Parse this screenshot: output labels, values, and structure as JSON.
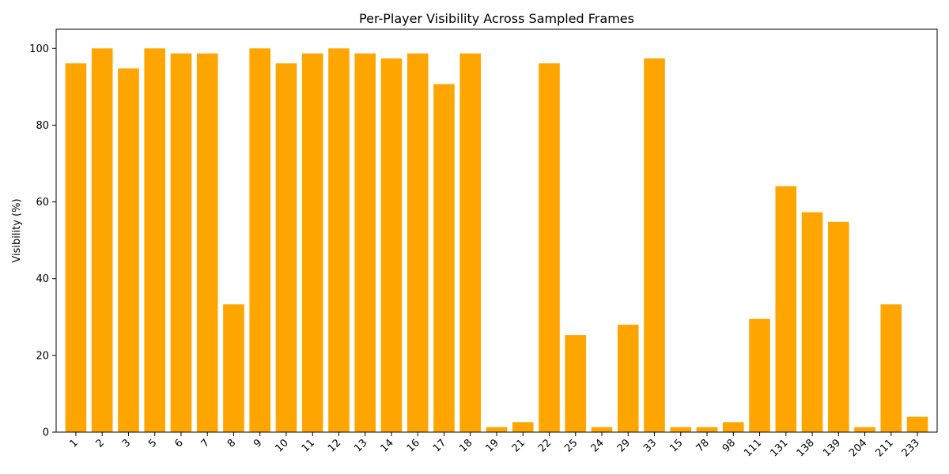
{
  "chart_data": {
    "type": "bar",
    "title": "Per-Player Visibility Across Sampled Frames",
    "xlabel": "",
    "ylabel": "Visibility (%)",
    "ylim": [
      0,
      105
    ],
    "yticks": [
      0,
      20,
      40,
      60,
      80,
      100
    ],
    "grid": false,
    "bar_color": "#FFA500",
    "categories": [
      "1",
      "2",
      "3",
      "5",
      "6",
      "7",
      "8",
      "9",
      "10",
      "11",
      "12",
      "13",
      "14",
      "16",
      "17",
      "18",
      "19",
      "21",
      "22",
      "25",
      "24",
      "29",
      "33",
      "15",
      "78",
      "98",
      "111",
      "131",
      "138",
      "139",
      "204",
      "211",
      "233"
    ],
    "values": [
      96.1,
      100,
      94.8,
      100,
      98.7,
      98.7,
      33.3,
      100,
      96.1,
      98.7,
      100,
      98.7,
      97.4,
      98.7,
      90.7,
      98.7,
      1.3,
      2.6,
      96.1,
      25.3,
      1.3,
      28.0,
      97.4,
      1.3,
      1.3,
      2.6,
      29.5,
      64.1,
      57.3,
      54.8,
      1.3,
      33.3,
      4.0
    ]
  }
}
